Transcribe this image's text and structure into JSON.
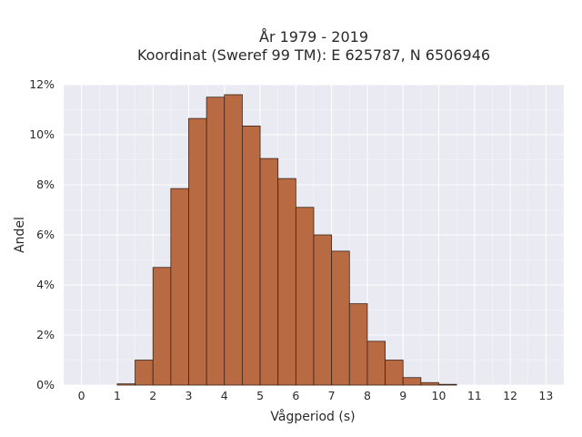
{
  "chart_data": {
    "type": "bar",
    "title_line1": "År 1979 - 2019",
    "title_line2": "Koordinat (Sweref 99 TM): E 625787, N 6506946",
    "xlabel": "Vågperiod (s)",
    "ylabel": "Andel",
    "xlim": [
      -0.5,
      13.5
    ],
    "ylim": [
      0,
      12
    ],
    "x_ticks": [
      0,
      1,
      2,
      3,
      4,
      5,
      6,
      7,
      8,
      9,
      10,
      11,
      12,
      13
    ],
    "y_ticks": [
      0,
      2,
      4,
      6,
      8,
      10,
      12
    ],
    "y_tick_labels": [
      "0%",
      "2%",
      "4%",
      "6%",
      "8%",
      "10%",
      "12%"
    ],
    "bin_width": 0.5,
    "bin_starts": [
      1.0,
      1.5,
      2.0,
      2.5,
      3.0,
      3.5,
      4.0,
      4.5,
      5.0,
      5.5,
      6.0,
      6.5,
      7.0,
      7.5,
      8.0,
      8.5,
      9.0,
      9.5,
      10.0
    ],
    "values": [
      0.05,
      1.0,
      4.7,
      7.85,
      10.65,
      11.5,
      11.6,
      10.35,
      9.05,
      8.25,
      7.1,
      6.0,
      5.35,
      3.25,
      1.75,
      1.0,
      0.3,
      0.1,
      0.03
    ],
    "grid": true,
    "colors": {
      "bar_fill": "#b86b42",
      "bar_edge": "#3a2418",
      "plot_background": "#eaeaf2",
      "grid": "#ffffff"
    }
  }
}
